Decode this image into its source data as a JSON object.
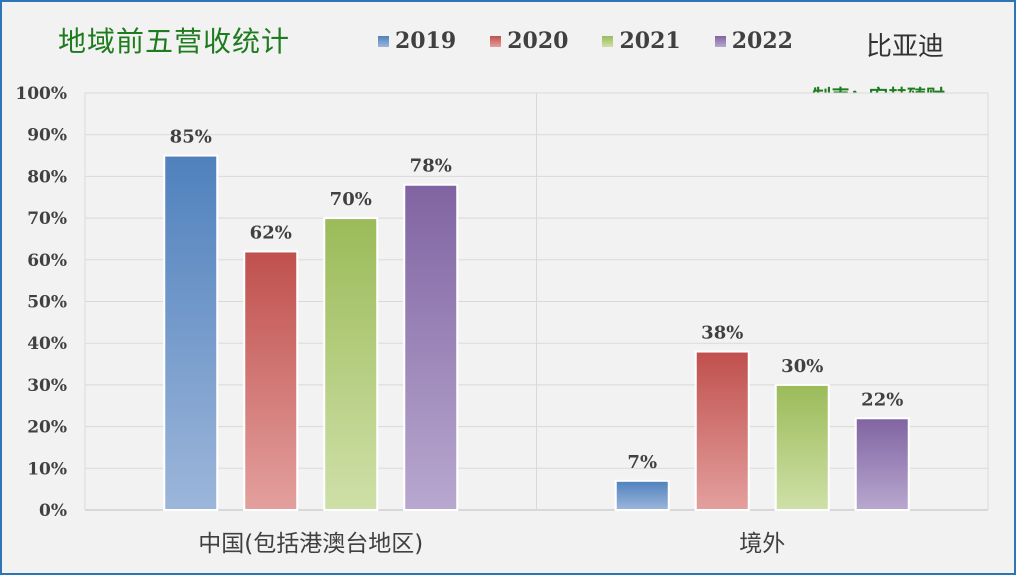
{
  "header": {
    "title": "地域前五营收统计",
    "company": "比亚迪",
    "maker": "制表：宏赫臻财"
  },
  "colors": {
    "series": [
      "#4f81bd",
      "#c0504d",
      "#9bbb59",
      "#8064a2"
    ],
    "series_light": [
      "#9db6da",
      "#e3a09e",
      "#cfe0a8",
      "#b8a8cf"
    ]
  },
  "chart_data": {
    "type": "bar",
    "title": "地域前五营收统计",
    "xlabel": "",
    "ylabel": "",
    "ylim": [
      0,
      100
    ],
    "yticks": [
      "0%",
      "10%",
      "20%",
      "30%",
      "40%",
      "50%",
      "60%",
      "70%",
      "80%",
      "90%",
      "100%"
    ],
    "grid": true,
    "legend": "top",
    "categories": [
      "中国(包括港澳台地区)",
      "境外"
    ],
    "series": [
      {
        "name": "2019",
        "values": [
          85,
          7
        ],
        "labels": [
          "85%",
          "7%"
        ]
      },
      {
        "name": "2020",
        "values": [
          62,
          38
        ],
        "labels": [
          "62%",
          "38%"
        ]
      },
      {
        "name": "2021",
        "values": [
          70,
          30
        ],
        "labels": [
          "70%",
          "30%"
        ]
      },
      {
        "name": "2022",
        "values": [
          78,
          22
        ],
        "labels": [
          "78%",
          "22%"
        ]
      }
    ]
  }
}
